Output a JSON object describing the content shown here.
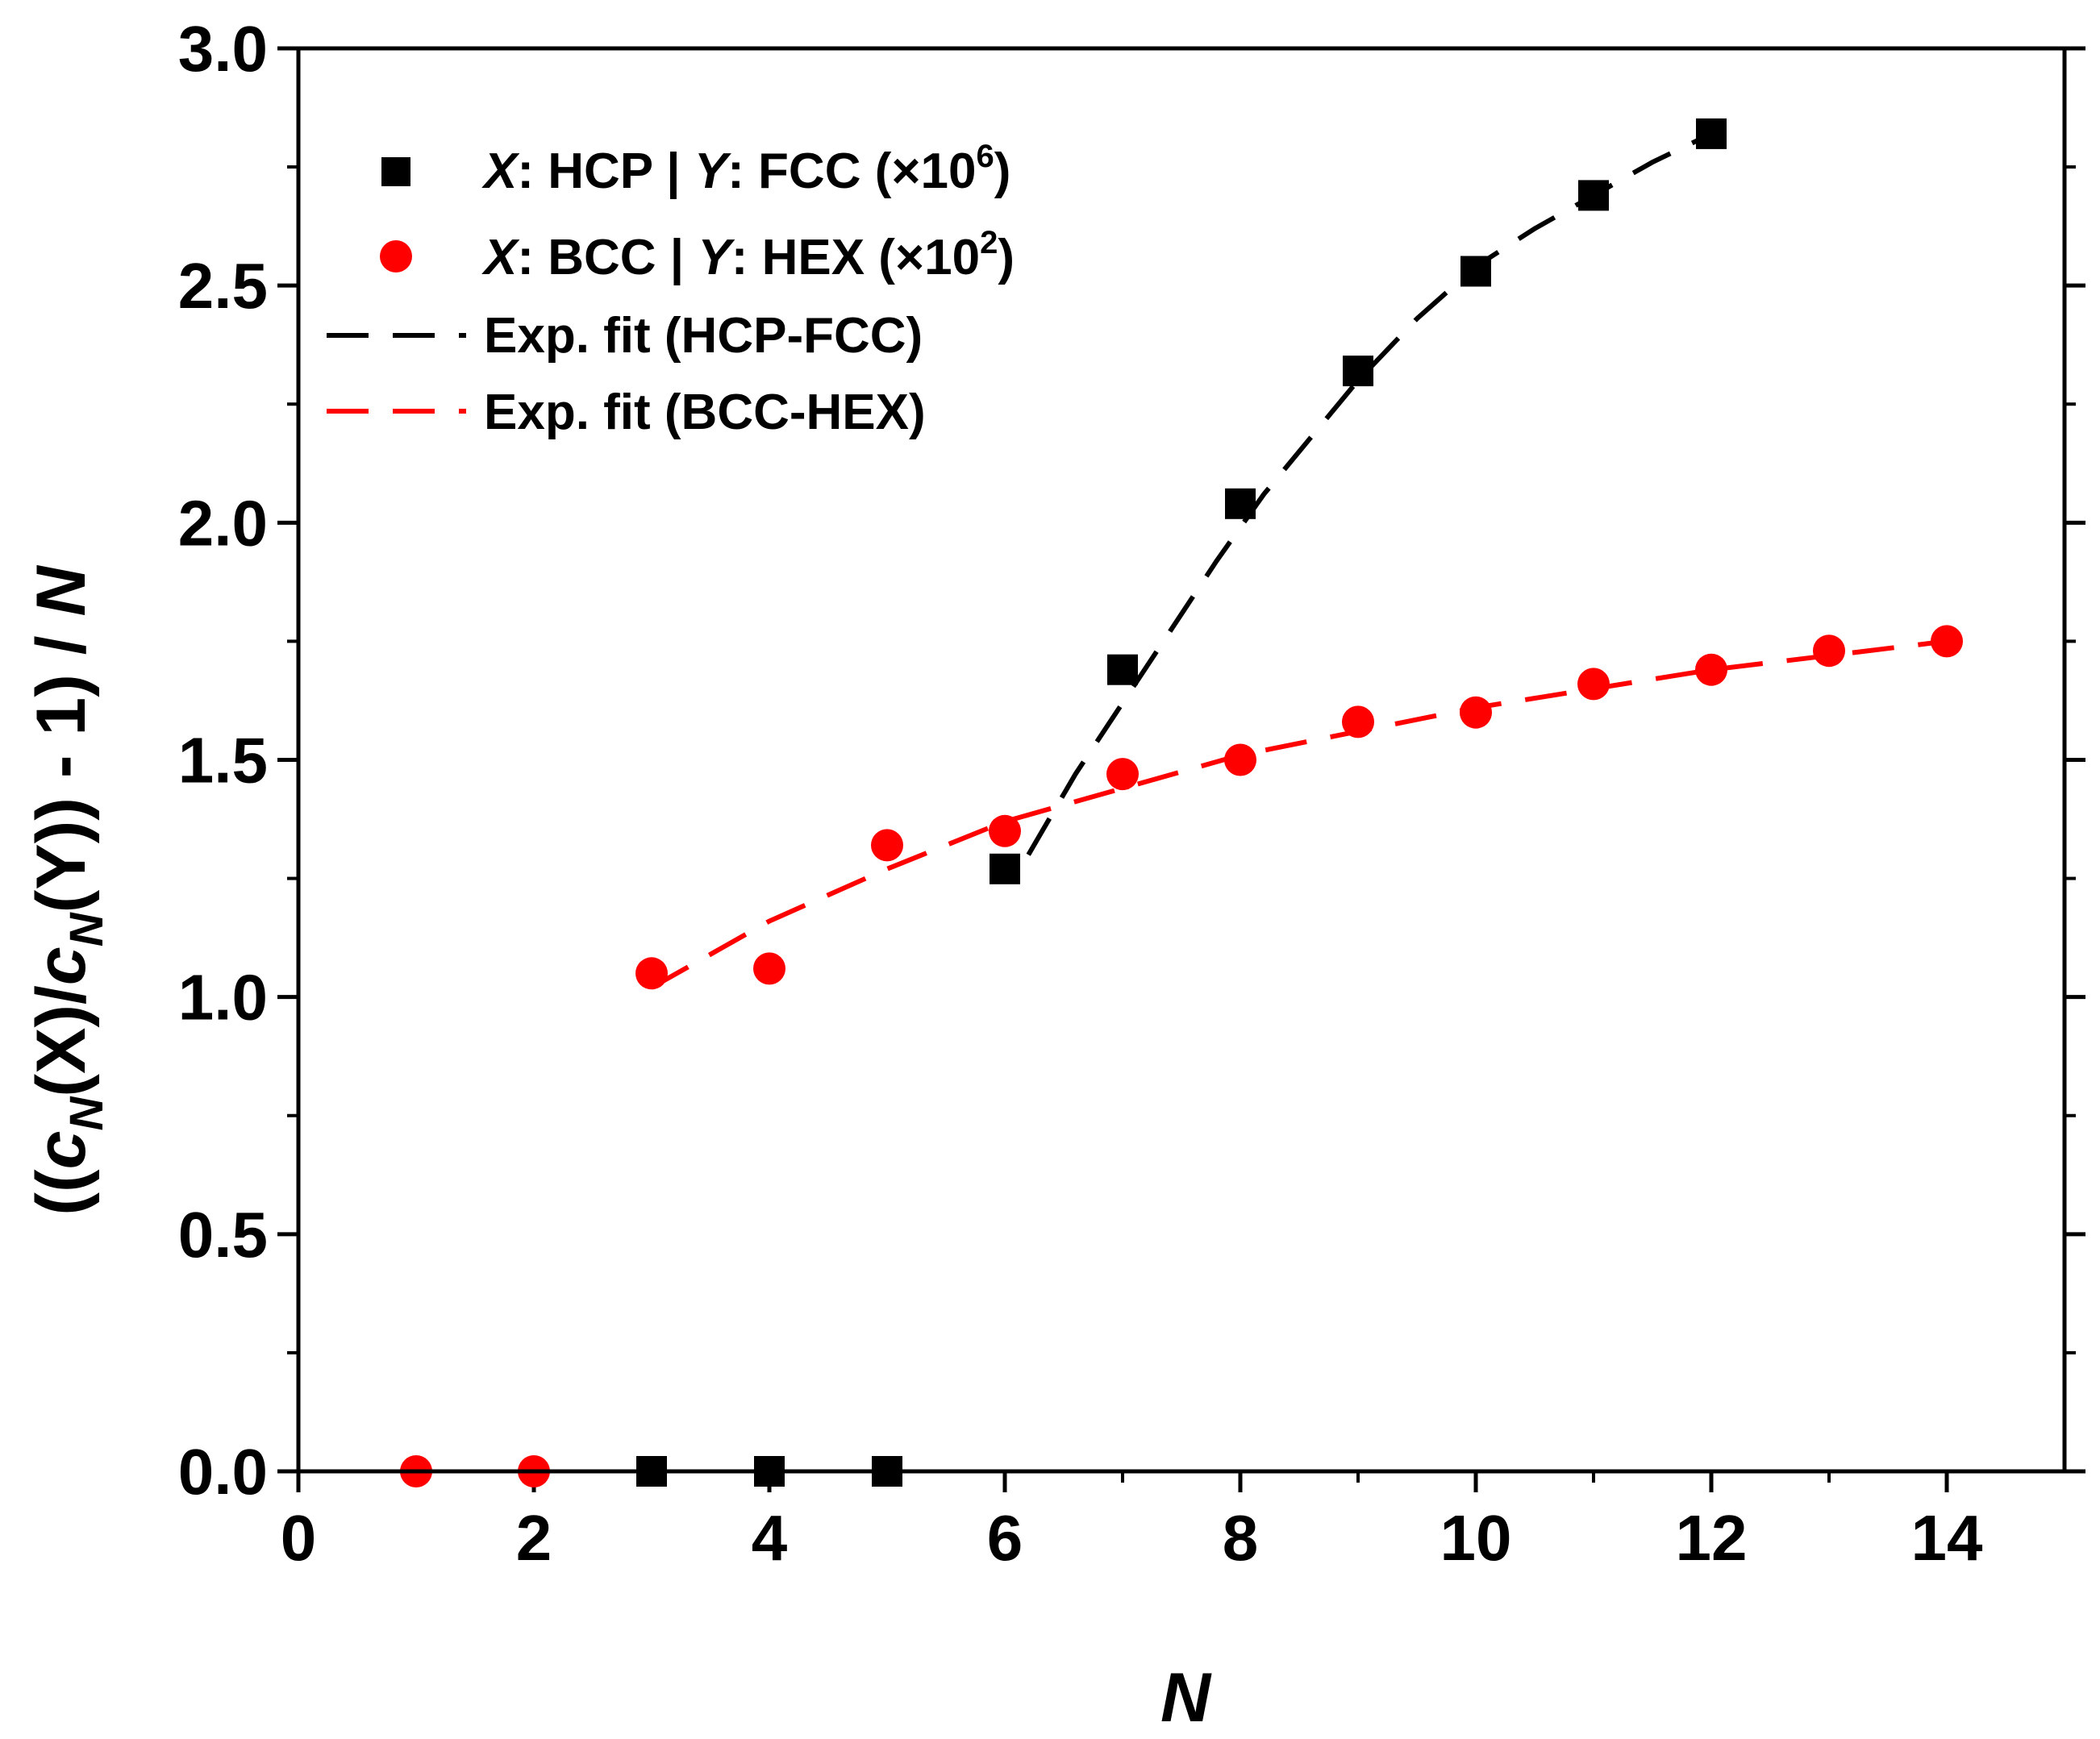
{
  "chart_data": {
    "type": "scatter",
    "title": "",
    "xlabel": "N",
    "ylabel": {
      "open": "((",
      "c1": "c",
      "sub1": "N",
      "x_arg": "(X)/",
      "c2": "c",
      "sub2": "N",
      "y_arg": "(Y)) - 1) / ",
      "n": "N"
    },
    "xlim": [
      0,
      15
    ],
    "ylim": [
      0,
      3.0
    ],
    "xticks": [
      0,
      2,
      4,
      6,
      8,
      10,
      12,
      14
    ],
    "xtick_labels": [
      "0",
      "2",
      "4",
      "6",
      "8",
      "10",
      "12",
      "14"
    ],
    "yticks": [
      0.0,
      0.5,
      1.0,
      1.5,
      2.0,
      2.5,
      3.0
    ],
    "ytick_labels": [
      "0.0",
      "0.5",
      "1.0",
      "1.5",
      "2.0",
      "2.5",
      "3.0"
    ],
    "series": [
      {
        "name": "X: HCP | Y: FCC (×10^6)",
        "marker": "square",
        "color": "#000000",
        "x": [
          3,
          4,
          5,
          6,
          7,
          8,
          9,
          10,
          11,
          12
        ],
        "y": [
          0.0,
          0.0,
          0.0,
          1.27,
          1.69,
          2.04,
          2.32,
          2.53,
          2.69,
          2.82
        ]
      },
      {
        "name": "X: BCC | Y: HEX (×10^2)",
        "marker": "circle",
        "color": "#ff0000",
        "x": [
          1,
          2,
          3,
          4,
          5,
          6,
          7,
          8,
          9,
          10,
          11,
          12,
          13,
          14
        ],
        "y": [
          0.0,
          0.0,
          1.05,
          1.06,
          1.32,
          1.35,
          1.47,
          1.5,
          1.58,
          1.6,
          1.66,
          1.69,
          1.73,
          1.75
        ]
      }
    ],
    "fits": [
      {
        "name": "Exp. fit (HCP-FCC)",
        "style": "dashed",
        "color": "#000000",
        "x": [
          6.2,
          6.6,
          7.0,
          7.4,
          7.8,
          8.2,
          8.6,
          9.0,
          9.5,
          10.0,
          10.5,
          11.0,
          11.5,
          12.0
        ],
        "y": [
          1.3,
          1.47,
          1.62,
          1.77,
          1.92,
          2.06,
          2.18,
          2.3,
          2.43,
          2.54,
          2.62,
          2.69,
          2.76,
          2.82
        ]
      },
      {
        "name": "Exp. fit (BCC-HEX)",
        "style": "dashed",
        "color": "#ff0000",
        "x": [
          3,
          4,
          5,
          6,
          7,
          8,
          9,
          10,
          11,
          12,
          13,
          14
        ],
        "y": [
          1.02,
          1.16,
          1.27,
          1.37,
          1.44,
          1.51,
          1.56,
          1.61,
          1.65,
          1.69,
          1.72,
          1.75
        ]
      }
    ],
    "legend": {
      "position": "top-left",
      "entries": [
        {
          "marker": "square",
          "color": "#000000",
          "x_label": "X",
          "x_value": ": HCP | ",
          "y_label": "Y",
          "y_value": ": FCC (×10",
          "exp": "6",
          "close": ")"
        },
        {
          "marker": "circle",
          "color": "#ff0000",
          "x_label": "X",
          "x_value": ": BCC | ",
          "y_label": "Y",
          "y_value": ": HEX (×10",
          "exp": "2",
          "close": ")"
        },
        {
          "marker": "dash",
          "color": "#000000",
          "text": "Exp. fit (HCP-FCC)"
        },
        {
          "marker": "dash",
          "color": "#ff0000",
          "text": "Exp. fit (BCC-HEX)"
        }
      ]
    }
  }
}
